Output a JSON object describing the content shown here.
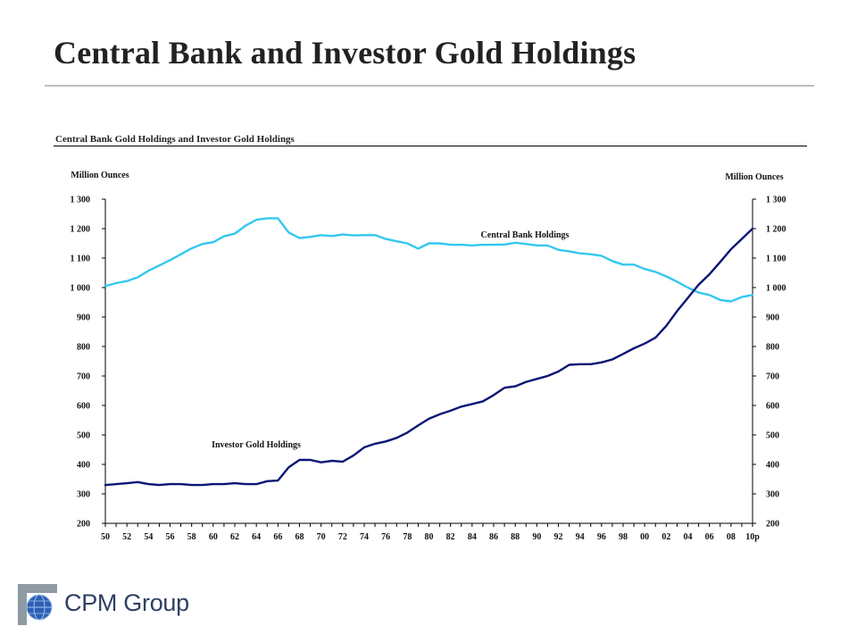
{
  "page": {
    "title": "Central Bank and Investor Gold Holdings"
  },
  "logo": {
    "text": "CPM Group",
    "icon": "globe-icon"
  },
  "chart_data": {
    "type": "line",
    "title": "Central Bank Gold Holdings and Investor Gold Holdings",
    "ylabel_left": "Million Ounces",
    "ylabel_right": "Million Ounces",
    "ylim": [
      200,
      1300
    ],
    "y_ticks": [
      200,
      300,
      400,
      500,
      600,
      700,
      800,
      900,
      1000,
      1100,
      1200,
      1300
    ],
    "y_tick_labels": [
      "200",
      "300",
      "400",
      "500",
      "600",
      "700",
      "800",
      "900",
      "1 000",
      "1 100",
      "1 200",
      "1 300"
    ],
    "x_tick_labels": [
      "50",
      "52",
      "54",
      "56",
      "58",
      "60",
      "62",
      "64",
      "66",
      "68",
      "70",
      "72",
      "74",
      "76",
      "78",
      "80",
      "82",
      "84",
      "86",
      "88",
      "90",
      "92",
      "94",
      "96",
      "98",
      "00",
      "02",
      "04",
      "06",
      "08",
      "10p"
    ],
    "x": [
      "1950",
      "1951",
      "1952",
      "1953",
      "1954",
      "1955",
      "1956",
      "1957",
      "1958",
      "1959",
      "1960",
      "1961",
      "1962",
      "1963",
      "1964",
      "1965",
      "1966",
      "1967",
      "1968",
      "1969",
      "1970",
      "1971",
      "1972",
      "1973",
      "1974",
      "1975",
      "1976",
      "1977",
      "1978",
      "1979",
      "1980",
      "1981",
      "1982",
      "1983",
      "1984",
      "1985",
      "1986",
      "1987",
      "1988",
      "1989",
      "1990",
      "1991",
      "1992",
      "1993",
      "1994",
      "1995",
      "1996",
      "1997",
      "1998",
      "1999",
      "2000",
      "2001",
      "2002",
      "2003",
      "2004",
      "2005",
      "2006",
      "2007",
      "2008",
      "2009",
      "2010p"
    ],
    "grid": false,
    "legend": "none",
    "series": [
      {
        "name": "Central Bank Holdings",
        "color": "#33c8f0",
        "values": [
          1005,
          1015,
          1022,
          1035,
          1057,
          1075,
          1093,
          1113,
          1133,
          1148,
          1154,
          1174,
          1183,
          1210,
          1230,
          1235,
          1235,
          1187,
          1168,
          1172,
          1178,
          1175,
          1180,
          1177,
          1178,
          1178,
          1165,
          1157,
          1150,
          1132,
          1150,
          1150,
          1145,
          1145,
          1143,
          1145,
          1145,
          1146,
          1152,
          1148,
          1143,
          1143,
          1128,
          1123,
          1116,
          1113,
          1108,
          1090,
          1078,
          1078,
          1063,
          1053,
          1038,
          1020,
          1000,
          983,
          975,
          958,
          953,
          968,
          975
        ]
      },
      {
        "name": "Investor Gold Holdings",
        "color": "#0b1575",
        "values": [
          330,
          333,
          336,
          340,
          333,
          330,
          333,
          333,
          330,
          330,
          333,
          333,
          336,
          333,
          333,
          343,
          345,
          390,
          415,
          415,
          407,
          412,
          409,
          430,
          458,
          470,
          478,
          490,
          508,
          532,
          555,
          570,
          582,
          596,
          605,
          614,
          635,
          660,
          665,
          680,
          690,
          700,
          715,
          738,
          740,
          740,
          746,
          756,
          775,
          794,
          810,
          830,
          870,
          920,
          965,
          1010,
          1045,
          1087,
          1130,
          1165,
          1200
        ]
      }
    ],
    "annotations": [
      {
        "text": "Central Bank Holdings",
        "series": 0
      },
      {
        "text": "Investor Gold Holdings",
        "series": 1
      }
    ]
  }
}
